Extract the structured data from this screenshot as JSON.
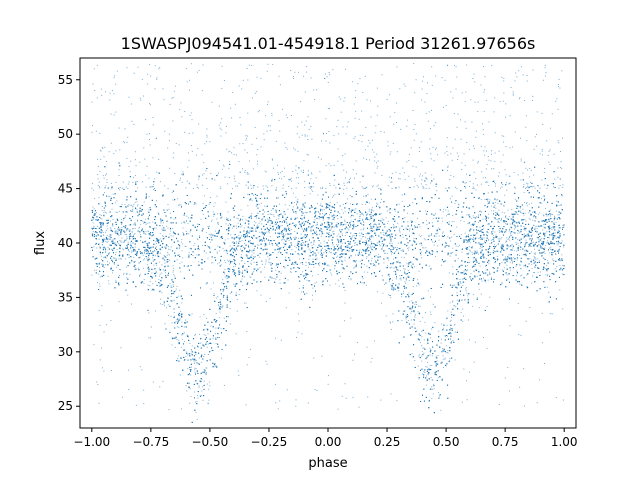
{
  "chart_data": {
    "type": "scatter",
    "title": "1SWASPJ094541.01-454918.1 Period 31261.97656s",
    "xlabel": "phase",
    "ylabel": "flux",
    "xlim": [
      -1.05,
      1.05
    ],
    "ylim": [
      23,
      57
    ],
    "xticks": [
      -1.0,
      -0.75,
      -0.5,
      -0.25,
      0.0,
      0.25,
      0.5,
      0.75,
      1.0
    ],
    "xtick_labels": [
      "−1.00",
      "−0.75",
      "−0.50",
      "−0.25",
      "0.00",
      "0.25",
      "0.50",
      "0.75",
      "1.00"
    ],
    "yticks": [
      25,
      30,
      35,
      40,
      45,
      50,
      55
    ],
    "ytick_labels": [
      "25",
      "30",
      "35",
      "40",
      "45",
      "50",
      "55"
    ],
    "grid": false,
    "point_color": "#1f77b4",
    "phase_range": [
      -1.0,
      1.0
    ],
    "baseline_flux": 40.5,
    "band_spread": 2.3,
    "eclipses": [
      {
        "center_phase": -0.55,
        "min_flux": 28.3
      },
      {
        "center_phase": 0.45,
        "min_flux": 28.3
      }
    ],
    "outlier_range": [
      24.5,
      56.5
    ]
  }
}
